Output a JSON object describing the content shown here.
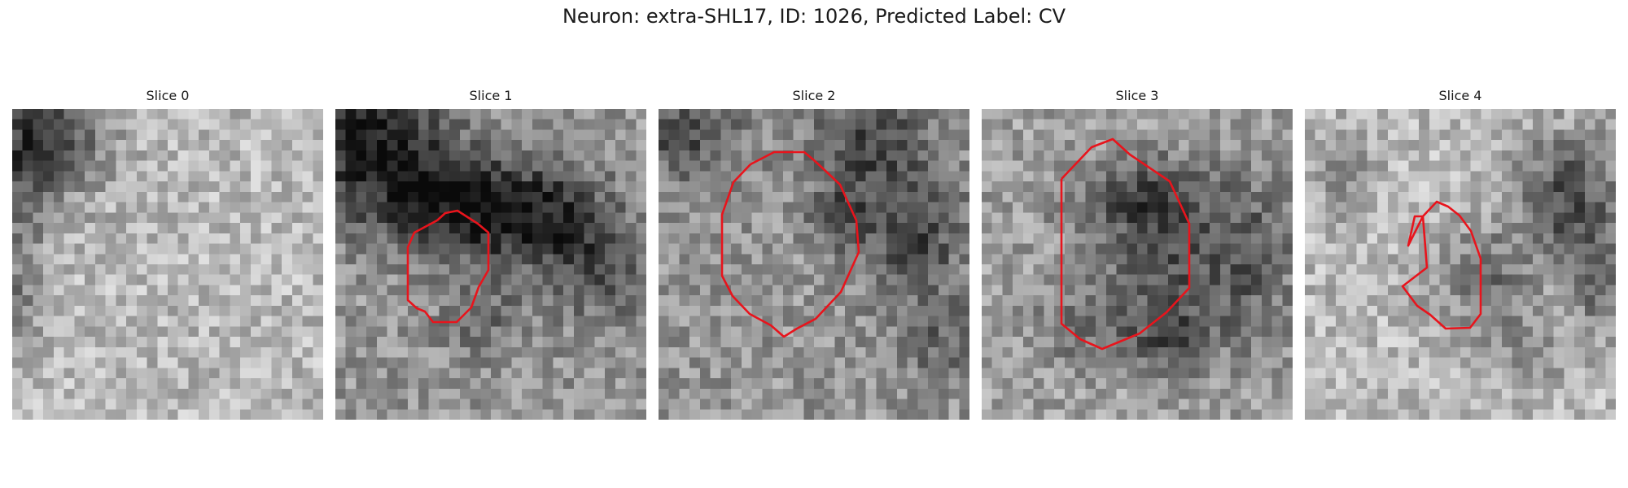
{
  "figure": {
    "title": "Neuron: extra-SHL17, ID: 1026, Predicted Label: CV"
  },
  "colors": {
    "contour": "#e8141c",
    "colormap": "grayscale"
  },
  "slices": [
    {
      "label": "Slice 0",
      "has_contour": false
    },
    {
      "label": "Slice 1",
      "has_contour": true
    },
    {
      "label": "Slice 2",
      "has_contour": true
    },
    {
      "label": "Slice 3",
      "has_contour": true
    },
    {
      "label": "Slice 4",
      "has_contour": true
    }
  ]
}
